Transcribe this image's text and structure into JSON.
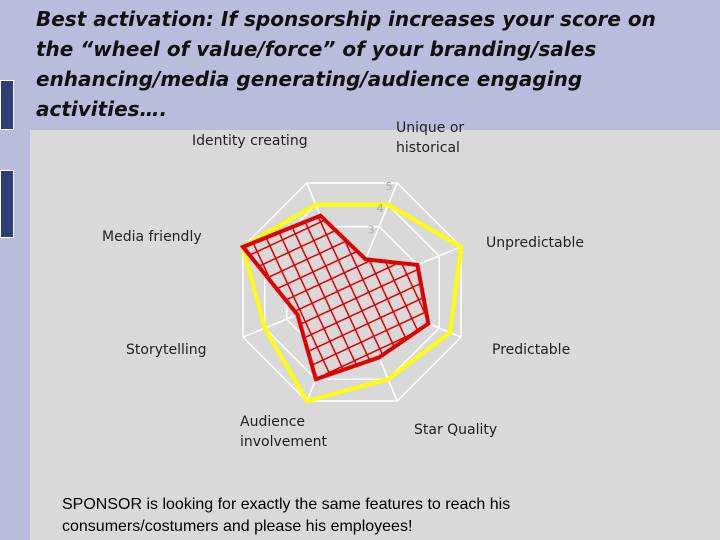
{
  "slide": {
    "title": "Best activation: If sponsorship increases your score on the “wheel of value/force” of your branding/sales enhancing/media generating/audience engaging activities….",
    "footer": "SPONSOR is looking for exactly the same features to reach his consumers/costumers and please his employees!"
  },
  "chart_data": {
    "type": "radar",
    "categories": [
      "Unique or historical",
      "Unpredictable",
      "Predictable",
      "Star Quality",
      "Audience involvement",
      "Storytelling",
      "Media friendly",
      "Identity creating"
    ],
    "series": [
      {
        "color": "#ffff00",
        "values": [
          4,
          5,
          4.5,
          4,
          5,
          4,
          5,
          4
        ]
      },
      {
        "color": "#e00000",
        "values": [
          1.5,
          3,
          3.5,
          3,
          4,
          2.5,
          5,
          3.5
        ]
      }
    ],
    "ylim": [
      0,
      5
    ],
    "yticks": [
      3,
      4,
      5
    ],
    "grid": true
  }
}
